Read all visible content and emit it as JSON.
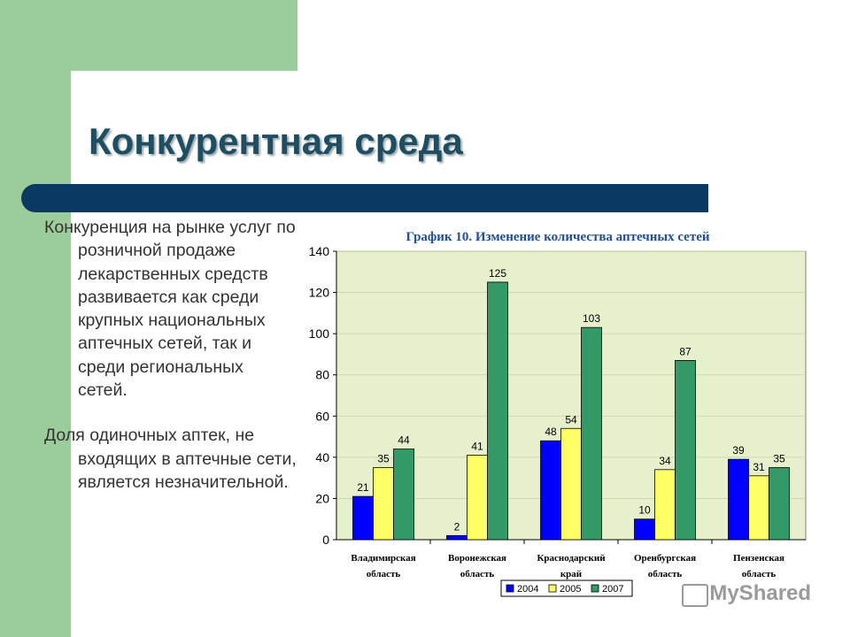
{
  "slide": {
    "title": "Конкурентная среда",
    "bullets": [
      "Конкуренция на рынке услуг по розничной продаже лекарственных средств развивается как среди крупных национальных аптечных сетей, так и среди региональных сетей.",
      "Доля одиночных аптек, не входящих в аптечные сети, является незначительной."
    ],
    "watermark": "MyShared",
    "colors": {
      "green": "#9ccc9a",
      "navy": "#0a3a63",
      "title": "#1f4e63"
    }
  },
  "chart_data": {
    "type": "bar",
    "title": "График 10. Изменение количества аптечных сетей",
    "categories": [
      [
        "Владимирская",
        "область"
      ],
      [
        "Воронежская",
        "область"
      ],
      [
        "Краснодарский",
        "край"
      ],
      [
        "Оренбургская",
        "область"
      ],
      [
        "Пензенская",
        "область"
      ]
    ],
    "series": [
      {
        "name": "2004",
        "color": "#0000ff",
        "values": [
          21,
          2,
          48,
          10,
          39
        ]
      },
      {
        "name": "2005",
        "color": "#ffff66",
        "values": [
          35,
          41,
          54,
          34,
          31
        ]
      },
      {
        "name": "2007",
        "color": "#339966",
        "values": [
          44,
          125,
          103,
          87,
          35
        ]
      }
    ],
    "ylim": [
      0,
      140
    ],
    "yticks": [
      0,
      20,
      40,
      60,
      80,
      100,
      120,
      140
    ],
    "plot_background": "#e6f0cc",
    "legend": "bottom"
  }
}
